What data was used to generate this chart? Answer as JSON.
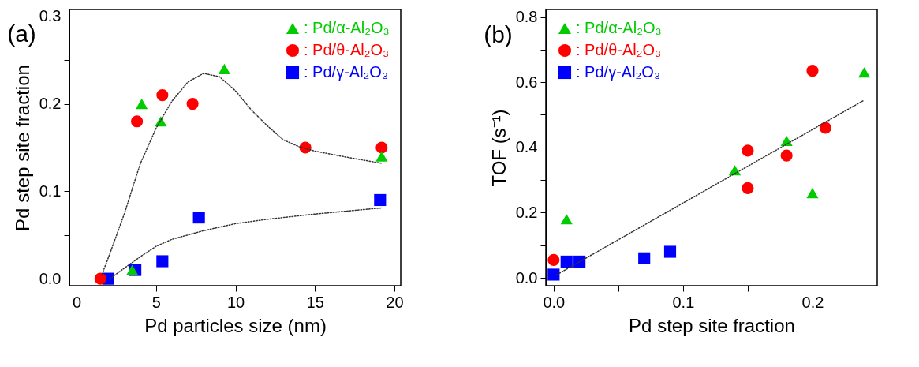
{
  "chart_data": [
    {
      "type": "scatter",
      "title": "(a)",
      "xlabel": "Pd particles size (nm)",
      "ylabel": "Pd step site fraction",
      "legend": "top right",
      "grid": false,
      "xlim": [
        -0.45,
        20.4
      ],
      "ylim": [
        -0.008,
        0.308
      ],
      "xticks": [
        0,
        5,
        10,
        15,
        20
      ],
      "yticks": [
        {
          "value": 0,
          "label": "0.0"
        },
        {
          "value": 0.05,
          "label": null
        },
        {
          "value": 0.1,
          "label": "0.1"
        },
        {
          "value": 0.15,
          "label": null
        },
        {
          "value": 0.2,
          "label": "0.2"
        },
        {
          "value": 0.25,
          "label": null
        },
        {
          "value": 0.3,
          "label": "0.3"
        }
      ],
      "series": [
        {
          "name": ": Pd/α-Al₂O₃",
          "color": "#00cc00",
          "marker": "triangle",
          "x": [
            3.5,
            4.1,
            5.3,
            9.3,
            19.2
          ],
          "values": [
            0.01,
            0.2,
            0.18,
            0.24,
            0.14
          ]
        },
        {
          "name": ": Pd/θ-Al₂O₃",
          "color": "#ff0000",
          "marker": "circle",
          "x": [
            1.5,
            3.8,
            5.4,
            7.3,
            14.4,
            19.2
          ],
          "values": [
            0,
            0.18,
            0.21,
            0.2,
            0.15,
            0.15
          ]
        },
        {
          "name": ": Pd/γ-Al₂O₃",
          "color": "#0000ff",
          "marker": "square",
          "x": [
            2,
            3.7,
            5.4,
            7.7,
            19.1
          ],
          "values": [
            0,
            0.01,
            0.02,
            0.07,
            0.09
          ]
        },
        {
          "type": "line",
          "color": "#333333",
          "line_style": "dotted",
          "x": [
            1.6,
            2,
            3,
            4,
            5,
            6,
            7,
            8,
            9,
            10,
            11,
            12,
            13,
            14,
            15,
            17,
            19.2
          ],
          "values": [
            0.005,
            0.024,
            0.074,
            0.131,
            0.172,
            0.203,
            0.225,
            0.235,
            0.231,
            0.215,
            0.193,
            0.175,
            0.159,
            0.151,
            0.146,
            0.139,
            0.132
          ]
        },
        {
          "type": "line",
          "color": "#333333",
          "line_style": "dotted",
          "x": [
            2.1,
            3,
            4,
            5,
            6,
            8,
            10,
            12,
            15,
            19.2
          ],
          "values": [
            0,
            0.012,
            0.025,
            0.037,
            0.045,
            0.055,
            0.063,
            0.068,
            0.074,
            0.081
          ]
        }
      ]
    },
    {
      "type": "scatter",
      "title": "(b)",
      "xlabel": "Pd step site fraction",
      "ylabel": "TOF (s⁻¹)",
      "legend": "top left",
      "grid": false,
      "xlim": [
        -0.006,
        0.25
      ],
      "ylim": [
        -0.024,
        0.823
      ],
      "xticks": [
        {
          "value": 0,
          "label": "0.0"
        },
        {
          "value": 0.05,
          "label": null
        },
        {
          "value": 0.1,
          "label": "0.1"
        },
        {
          "value": 0.15,
          "label": null
        },
        {
          "value": 0.2,
          "label": "0.2"
        }
      ],
      "yticks": [
        {
          "value": 0,
          "label": "0.0"
        },
        {
          "value": 0.1,
          "label": null
        },
        {
          "value": 0.2,
          "label": "0.2"
        },
        {
          "value": 0.3,
          "label": null
        },
        {
          "value": 0.4,
          "label": "0.4"
        },
        {
          "value": 0.5,
          "label": null
        },
        {
          "value": 0.6,
          "label": "0.6"
        },
        {
          "value": 0.7,
          "label": null
        },
        {
          "value": 0.8,
          "label": "0.8"
        }
      ],
      "series": [
        {
          "name": ": Pd/α-Al₂O₃",
          "color": "#00cc00",
          "marker": "triangle",
          "x": [
            0.01,
            0.14,
            0.18,
            0.2,
            0.24
          ],
          "values": [
            0.18,
            0.33,
            0.42,
            0.26,
            0.63
          ]
        },
        {
          "name": ": Pd/θ-Al₂O₃",
          "color": "#ff0000",
          "marker": "circle",
          "x": [
            0,
            0.15,
            0.15,
            0.18,
            0.2,
            0.21
          ],
          "values": [
            0.055,
            0.39,
            0.275,
            0.375,
            0.635,
            0.46
          ]
        },
        {
          "name": ": Pd/γ-Al₂O₃",
          "color": "#0000ff",
          "marker": "square",
          "x": [
            0,
            0.01,
            0.02,
            0.07,
            0.09
          ],
          "values": [
            0.01,
            0.05,
            0.05,
            0.06,
            0.08
          ]
        },
        {
          "type": "line",
          "color": "#333333",
          "line_style": "dotted",
          "x": [
            0.0025,
            0.24
          ],
          "values": [
            0.01,
            0.545
          ]
        }
      ]
    }
  ]
}
